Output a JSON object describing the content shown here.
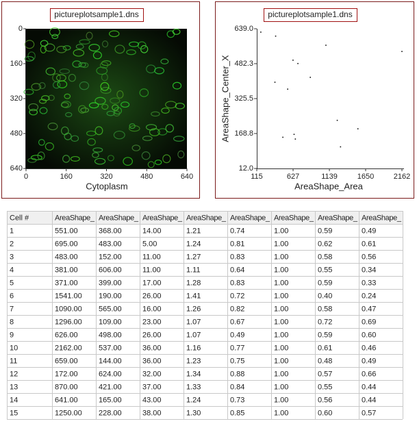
{
  "left_plot": {
    "title": "pictureplotsample1.dns",
    "x_label": "Cytoplasm",
    "xlim": [
      0,
      640
    ],
    "ylim": [
      640,
      0
    ],
    "xticks": [
      0,
      160,
      320,
      480,
      640
    ],
    "yticks": [
      0,
      160,
      320,
      480,
      640
    ]
  },
  "right_plot": {
    "title": "pictureplotsample1.dns",
    "x_label": "AreaShape_Area",
    "y_label": "AreaShape_Center_X",
    "xlim": [
      115,
      2162
    ],
    "ylim": [
      12,
      639
    ],
    "xticks": [
      115,
      627,
      1139,
      1650,
      2162
    ],
    "yticks": [
      {
        "value": 639,
        "label": "639.0"
      },
      {
        "value": 482.3,
        "label": "482.3"
      },
      {
        "value": 325.5,
        "label": "325.5"
      },
      {
        "value": 168.8,
        "label": "168.8"
      },
      {
        "value": 12,
        "label": "12.0"
      }
    ]
  },
  "table": {
    "headers": [
      "Cell #",
      "AreaShape_",
      "AreaShape_",
      "AreaShape_",
      "AreaShape_",
      "AreaShape_",
      "AreaShape_",
      "AreaShape_",
      "AreaShape_"
    ],
    "rows": [
      [
        "1",
        "551.00",
        "368.00",
        "14.00",
        "1.21",
        "0.74",
        "1.00",
        "0.59",
        "0.49"
      ],
      [
        "2",
        "695.00",
        "483.00",
        "5.00",
        "1.24",
        "0.81",
        "1.00",
        "0.62",
        "0.61"
      ],
      [
        "3",
        "483.00",
        "152.00",
        "11.00",
        "1.27",
        "0.83",
        "1.00",
        "0.58",
        "0.56"
      ],
      [
        "4",
        "381.00",
        "606.00",
        "11.00",
        "1.11",
        "0.64",
        "1.00",
        "0.55",
        "0.34"
      ],
      [
        "5",
        "371.00",
        "399.00",
        "17.00",
        "1.28",
        "0.83",
        "1.00",
        "0.59",
        "0.33"
      ],
      [
        "6",
        "1541.00",
        "190.00",
        "26.00",
        "1.41",
        "0.72",
        "1.00",
        "0.40",
        "0.24"
      ],
      [
        "7",
        "1090.00",
        "565.00",
        "16.00",
        "1.26",
        "0.82",
        "1.00",
        "0.58",
        "0.47"
      ],
      [
        "8",
        "1296.00",
        "109.00",
        "23.00",
        "1.07",
        "0.67",
        "1.00",
        "0.72",
        "0.69"
      ],
      [
        "9",
        "626.00",
        "498.00",
        "26.00",
        "1.07",
        "0.49",
        "1.00",
        "0.59",
        "0.60"
      ],
      [
        "10",
        "2162.00",
        "537.00",
        "36.00",
        "1.16",
        "0.77",
        "1.00",
        "0.61",
        "0.46"
      ],
      [
        "11",
        "659.00",
        "144.00",
        "36.00",
        "1.23",
        "0.75",
        "1.00",
        "0.48",
        "0.49"
      ],
      [
        "12",
        "172.00",
        "624.00",
        "32.00",
        "1.34",
        "0.88",
        "1.00",
        "0.57",
        "0.66"
      ],
      [
        "13",
        "870.00",
        "421.00",
        "37.00",
        "1.33",
        "0.84",
        "1.00",
        "0.55",
        "0.44"
      ],
      [
        "14",
        "641.00",
        "165.00",
        "43.00",
        "1.24",
        "0.73",
        "1.00",
        "0.56",
        "0.44"
      ],
      [
        "15",
        "1250.00",
        "228.00",
        "38.00",
        "1.30",
        "0.85",
        "1.00",
        "0.60",
        "0.57"
      ]
    ]
  }
}
